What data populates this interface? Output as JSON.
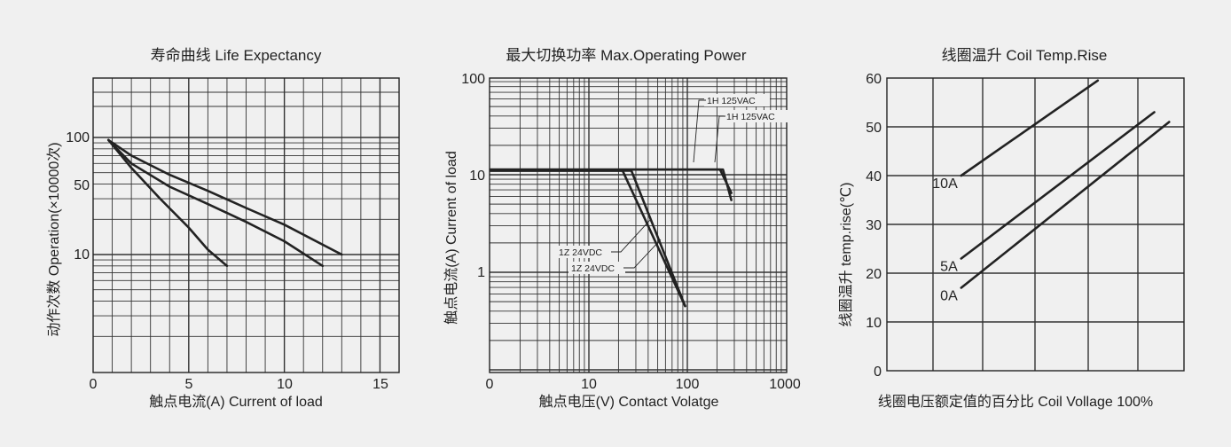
{
  "chart_data": [
    {
      "type": "line",
      "title": "寿命曲线 Life Expectancy",
      "xlabel": "触点电流(A) Current of load",
      "ylabel": "动作次数 Operation(×10000次)",
      "xlim": [
        0,
        16
      ],
      "ylim": [
        1,
        200
      ],
      "yscale": "log",
      "grid": true,
      "x_ticks": [
        "0",
        "5",
        "10",
        "15"
      ],
      "y_ticks": [
        "10",
        "50",
        "100"
      ],
      "series": [
        {
          "x": [
            0.8,
            2,
            3.5,
            5,
            6,
            7
          ],
          "y": [
            95,
            55,
            30,
            17,
            11,
            8
          ]
        },
        {
          "x": [
            0.8,
            2,
            4,
            6,
            8,
            10,
            12
          ],
          "y": [
            95,
            60,
            38,
            27,
            19,
            13,
            8
          ]
        },
        {
          "x": [
            0.8,
            2,
            4,
            6,
            8,
            10,
            13
          ],
          "y": [
            95,
            70,
            48,
            35,
            25,
            18,
            10
          ]
        }
      ]
    },
    {
      "type": "line",
      "title": "最大切换功率 Max.Operating Power",
      "xlabel": "触点电压(V) Contact Volatge",
      "ylabel": "触点电流(A) Current of load",
      "xlim": [
        1,
        1000
      ],
      "ylim": [
        0.1,
        100
      ],
      "xscale": "log",
      "yscale": "log",
      "grid": true,
      "x_ticks": [
        "0",
        "10",
        "100",
        "1000"
      ],
      "y_ticks": [
        "1",
        "10",
        "100"
      ],
      "series": [
        {
          "x": [
            1,
            22,
            95
          ],
          "y": [
            11,
            11,
            0.45
          ]
        },
        {
          "x": [
            1,
            27,
            95
          ],
          "y": [
            11,
            11,
            0.45
          ]
        },
        {
          "x": [
            1,
            230,
            280
          ],
          "y": [
            11.3,
            11.3,
            5.5
          ]
        },
        {
          "x": [
            1,
            215,
            280
          ],
          "y": [
            11.3,
            11.3,
            6.5
          ]
        }
      ],
      "annotations": [
        {
          "text": "1H 125VAC",
          "x": 185,
          "y": 70
        },
        {
          "text": "1H 125VAC",
          "x": 230,
          "y": 44
        },
        {
          "text": "1Z 24VDC",
          "x": 7.5,
          "y": 2
        },
        {
          "text": "1Z 24VDC",
          "x": 9.5,
          "y": 1.5
        }
      ]
    },
    {
      "type": "line",
      "title": "线圈温升 Coil Temp.Rise",
      "xlabel": "线圈电压额定值的百分比  Coil Vollage 100%",
      "ylabel": "线圈温升 temp.rise(℃)",
      "xlim": [
        0,
        100
      ],
      "ylim": [
        0,
        60
      ],
      "grid": true,
      "y_ticks": [
        "0",
        "10",
        "20",
        "30",
        "40",
        "50",
        "60"
      ],
      "series": [
        {
          "name": "10A",
          "x": [
            25,
            71
          ],
          "y": [
            40,
            59.5
          ]
        },
        {
          "name": "5A",
          "x": [
            25,
            90
          ],
          "y": [
            23,
            53
          ]
        },
        {
          "name": "0A",
          "x": [
            25,
            95
          ],
          "y": [
            17,
            51
          ]
        }
      ]
    }
  ]
}
